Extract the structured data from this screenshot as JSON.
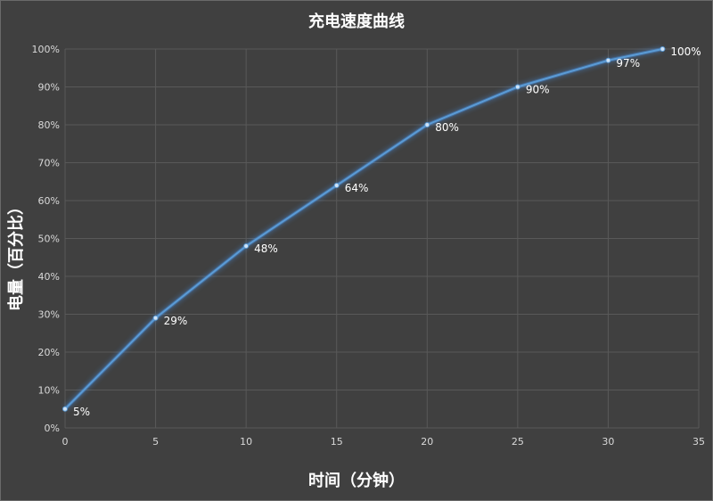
{
  "colors": {
    "background": "#404040",
    "gridline": "#595959",
    "line": "#5b9bd5",
    "glow": "#4a90e2",
    "text": "#ffffff",
    "tick_text": "#d9d9d9"
  },
  "chart_data": {
    "type": "line",
    "title": "充电速度曲线",
    "xlabel": "时间（分钟）",
    "ylabel": "电量（百分比）",
    "xlim": [
      0,
      35
    ],
    "ylim": [
      0,
      100
    ],
    "x_ticks": [
      "0",
      "5",
      "10",
      "15",
      "20",
      "25",
      "30",
      "35"
    ],
    "y_ticks": [
      "0%",
      "10%",
      "20%",
      "30%",
      "40%",
      "50%",
      "60%",
      "70%",
      "80%",
      "90%",
      "100%"
    ],
    "grid": true,
    "series": [
      {
        "x": [
          0,
          5,
          10,
          15,
          20,
          25,
          30,
          33
        ],
        "values": [
          5,
          29,
          48,
          64,
          80,
          90,
          97,
          100
        ],
        "labels": [
          "5%",
          "29%",
          "48%",
          "64%",
          "80%",
          "90%",
          "97%",
          "100%"
        ]
      }
    ]
  }
}
